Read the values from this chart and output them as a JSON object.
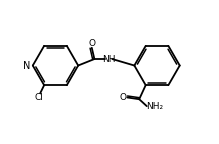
{
  "bg_color": "#ffffff",
  "line_color": "#000000",
  "lw": 1.3,
  "lw_inner": 1.1,
  "fs": 6.5,
  "figsize": [
    2.19,
    1.44
  ],
  "dpi": 100,
  "xlim": [
    0,
    10
  ],
  "ylim": [
    0,
    6.6
  ]
}
